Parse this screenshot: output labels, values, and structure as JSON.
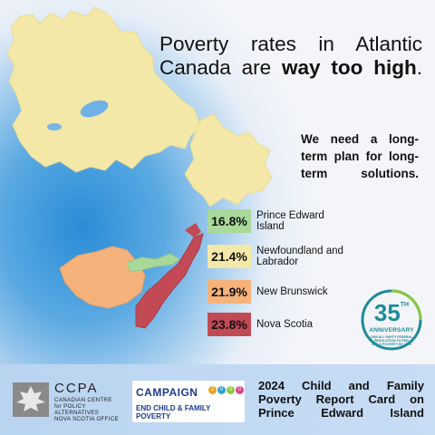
{
  "headline": {
    "line1": "Poverty rates in Atlantic",
    "line2_plain": "Canada are ",
    "line2_bold": "way too high",
    "line2_end": "."
  },
  "tagline": {
    "line1": "We need a long-",
    "line2": "term plan for long-",
    "line3": "term solutions."
  },
  "legend": [
    {
      "value": "16.8%",
      "name_line1": "Prince Edward",
      "name_line2": "Island",
      "color": "#a9d99a"
    },
    {
      "value": "21.4%",
      "name_line1": "Newfoundland and",
      "name_line2": "Labrador",
      "color": "#f3e8a8"
    },
    {
      "value": "21.9%",
      "name_line1": "New Brunswick",
      "name_line2": "",
      "color": "#f5b27a"
    },
    {
      "value": "23.8%",
      "name_line1": "Nova Scotia",
      "name_line2": "",
      "color": "#c24a55"
    }
  ],
  "badge": {
    "number": "35",
    "suffix": "TH",
    "word": "ANNIVERSARY",
    "fine_line1": "1989 ALL PARTY FEDERAL",
    "fine_line2": "RESOLUTION TO END",
    "fine_line3": "CHILD POVERTY BY 2000",
    "color": "#1e8a9a"
  },
  "footer": {
    "ccpa_title": "CCPA",
    "ccpa_sub1": "CANADIAN CENTRE",
    "ccpa_sub2": "for POLICY ALTERNATIVES",
    "ccpa_sub3": "NOVA SCOTIA OFFICE",
    "campaign_word": "CAMPAIGN",
    "campaign_digits": [
      "2",
      "0",
      "0",
      "0"
    ],
    "campaign_digit_colors": [
      "#e8a020",
      "#2aa0d8",
      "#8cc63e",
      "#e0408a"
    ],
    "campaign_tagline": "END CHILD & FAMILY POVERTY",
    "report_line1": "2024 Child and Family",
    "report_line2": "Poverty Report Card on",
    "report_line3": "Prince Edward Island"
  }
}
